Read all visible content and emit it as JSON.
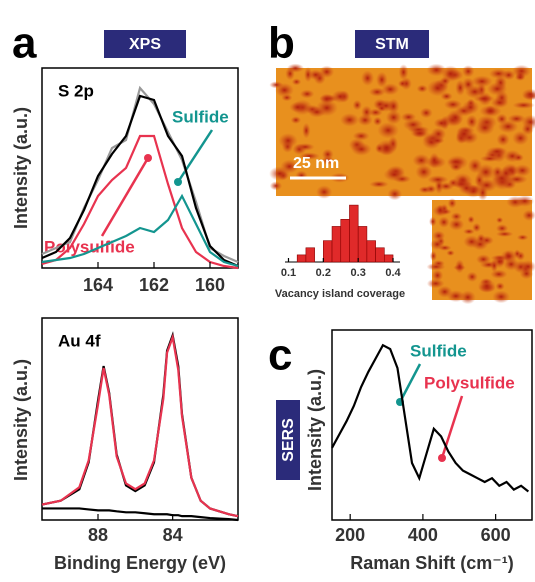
{
  "panel_labels": [
    "a",
    "b",
    "c"
  ],
  "badges": [
    "XPS",
    "STM",
    "SERS"
  ],
  "scale_bar": "25 nm",
  "chart_data": [
    {
      "type": "line",
      "ylabel": "Intensity (a.u.)",
      "annotations": [
        "S 2p",
        "Sulfide",
        "Polysulfide"
      ],
      "x": [
        166,
        165.5,
        165,
        164.5,
        164,
        163.5,
        163,
        162.5,
        162,
        161.5,
        161,
        160.5,
        160,
        159.5,
        159
      ],
      "xlim": [
        166,
        159
      ],
      "xticks": [
        164,
        162,
        160
      ],
      "ylim": [
        0,
        1
      ],
      "series": [
        {
          "color": "#999999",
          "values": [
            0.07,
            0.1,
            0.13,
            0.3,
            0.44,
            0.6,
            0.64,
            0.9,
            0.82,
            0.68,
            0.54,
            0.33,
            0.1,
            0.06,
            0.03
          ]
        },
        {
          "color": "#000000",
          "values": [
            0.05,
            0.08,
            0.15,
            0.29,
            0.46,
            0.57,
            0.66,
            0.86,
            0.84,
            0.66,
            0.56,
            0.3,
            0.11,
            0.04,
            0.01
          ]
        },
        {
          "color": "#e8334f",
          "values": [
            0.02,
            0.04,
            0.1,
            0.22,
            0.36,
            0.44,
            0.5,
            0.66,
            0.66,
            0.42,
            0.2,
            0.08,
            0.03,
            0.01,
            0.0
          ]
        },
        {
          "color": "#13958f",
          "values": [
            0.03,
            0.04,
            0.05,
            0.07,
            0.1,
            0.13,
            0.16,
            0.2,
            0.18,
            0.24,
            0.36,
            0.22,
            0.08,
            0.03,
            0.01
          ]
        }
      ]
    },
    {
      "type": "line",
      "ylabel": "Intensity (a.u.)",
      "xlabel": "Binding Energy (eV)",
      "annotations": [
        "Au 4f"
      ],
      "x": [
        91,
        90,
        89,
        88.5,
        88,
        87.7,
        87.4,
        87,
        86.5,
        86,
        85.5,
        85,
        84.5,
        84.3,
        84,
        83.7,
        83.5,
        83,
        82.5,
        82,
        81,
        80.5
      ],
      "xlim": [
        91,
        80.5
      ],
      "xticks": [
        88,
        84
      ],
      "ylim": [
        0,
        1.05
      ],
      "series": [
        {
          "color": "#000000",
          "values": [
            0.08,
            0.1,
            0.16,
            0.3,
            0.62,
            0.8,
            0.66,
            0.34,
            0.18,
            0.15,
            0.18,
            0.3,
            0.65,
            0.88,
            0.96,
            0.8,
            0.55,
            0.22,
            0.1,
            0.06,
            0.03,
            0.02
          ]
        },
        {
          "color": "#e8334f",
          "values": [
            0.08,
            0.1,
            0.17,
            0.31,
            0.6,
            0.79,
            0.65,
            0.33,
            0.19,
            0.16,
            0.19,
            0.31,
            0.63,
            0.87,
            0.95,
            0.78,
            0.54,
            0.22,
            0.1,
            0.06,
            0.03,
            0.02
          ]
        },
        {
          "color": "#000000",
          "values": [
            0.06,
            0.06,
            0.06,
            0.055,
            0.05,
            0.05,
            0.05,
            0.045,
            0.04,
            0.04,
            0.035,
            0.03,
            0.03,
            0.03,
            0.025,
            0.025,
            0.02,
            0.02,
            0.015,
            0.01,
            0.005,
            0.0
          ]
        }
      ]
    },
    {
      "type": "histogram",
      "xlabel": "Vacancy island coverage",
      "color": "#e02a2a",
      "bins": [
        0.125,
        0.15,
        0.175,
        0.2,
        0.225,
        0.25,
        0.275,
        0.3,
        0.325,
        0.35,
        0.375,
        0.4
      ],
      "values": [
        1,
        2,
        0,
        3,
        5,
        6,
        8,
        5,
        3,
        2,
        1
      ],
      "xlim": [
        0.09,
        0.42
      ],
      "xticks": [
        0.1,
        0.2,
        0.3,
        0.4
      ],
      "ylim": [
        0,
        9
      ]
    },
    {
      "type": "line",
      "ylabel": "Intensity (a.u.)",
      "xlabel": "Raman Shift (cm⁻¹)",
      "annotations": [
        "Sulfide",
        "Polysulfide"
      ],
      "x": [
        150,
        170,
        190,
        210,
        230,
        250,
        270,
        290,
        310,
        330,
        350,
        370,
        390,
        410,
        430,
        450,
        470,
        490,
        510,
        530,
        550,
        570,
        590,
        610,
        630,
        650,
        670,
        690
      ],
      "xlim": [
        150,
        700
      ],
      "xticks": [
        200,
        400,
        600
      ],
      "ylim": [
        0,
        1
      ],
      "series": [
        {
          "color": "#000000",
          "values": [
            0.38,
            0.45,
            0.52,
            0.6,
            0.7,
            0.78,
            0.85,
            0.92,
            0.9,
            0.8,
            0.55,
            0.3,
            0.22,
            0.35,
            0.48,
            0.44,
            0.36,
            0.3,
            0.26,
            0.24,
            0.22,
            0.2,
            0.22,
            0.18,
            0.2,
            0.16,
            0.18,
            0.15
          ]
        }
      ]
    }
  ]
}
